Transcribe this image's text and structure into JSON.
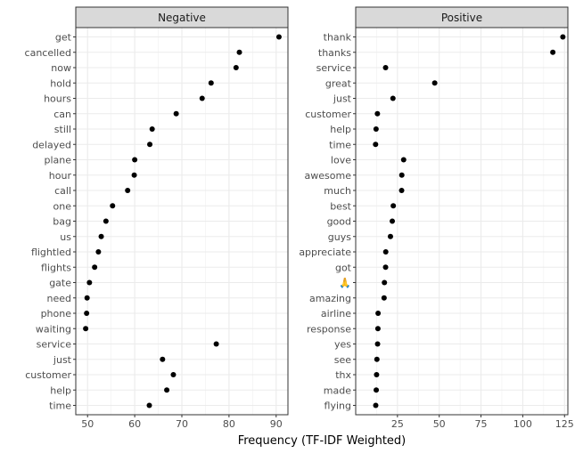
{
  "chart_data": [
    {
      "type": "scatter",
      "panel": "Negative",
      "xlim": [
        47.5,
        92.5
      ],
      "xticks": [
        50,
        60,
        70,
        80,
        90
      ],
      "grid": true,
      "point_color": "#000000",
      "categories": [
        "get",
        "cancelled",
        "now",
        "hold",
        "hours",
        "can",
        "still",
        "delayed",
        "plane",
        "hour",
        "call",
        "one",
        "bag",
        "us",
        "flightled",
        "flights",
        "gate",
        "need",
        "phone",
        "waiting",
        "service",
        "just",
        "customer",
        "help",
        "time"
      ],
      "values": [
        90.6,
        82.2,
        81.5,
        76.2,
        74.3,
        68.8,
        63.7,
        63.2,
        60.0,
        59.9,
        58.5,
        55.3,
        53.9,
        52.9,
        52.3,
        51.5,
        50.4,
        49.9,
        49.8,
        49.6,
        77.3,
        65.9,
        68.2,
        66.8,
        63.1
      ]
    },
    {
      "type": "scatter",
      "panel": "Positive",
      "xlim": [
        0,
        127
      ],
      "xticks": [
        25,
        50,
        75,
        100,
        125
      ],
      "grid": true,
      "point_color": "#000000",
      "categories": [
        "thank",
        "thanks",
        "service",
        "great",
        "just",
        "customer",
        "help",
        "time",
        "love",
        "awesome",
        "much",
        "best",
        "good",
        "guys",
        "appreciate",
        "got",
        "🙏",
        "amazing",
        "airline",
        "response",
        "yes",
        "see",
        "thx",
        "made",
        "flying"
      ],
      "values": [
        124.0,
        118.0,
        17.9,
        47.3,
        22.3,
        13.0,
        12.2,
        11.9,
        28.7,
        27.6,
        27.5,
        22.5,
        21.9,
        20.8,
        18.0,
        17.9,
        17.2,
        17.0,
        13.4,
        13.3,
        13.1,
        12.7,
        12.5,
        12.3,
        12.0
      ]
    }
  ],
  "xlabel": "Frequency (TF-IDF Weighted)"
}
